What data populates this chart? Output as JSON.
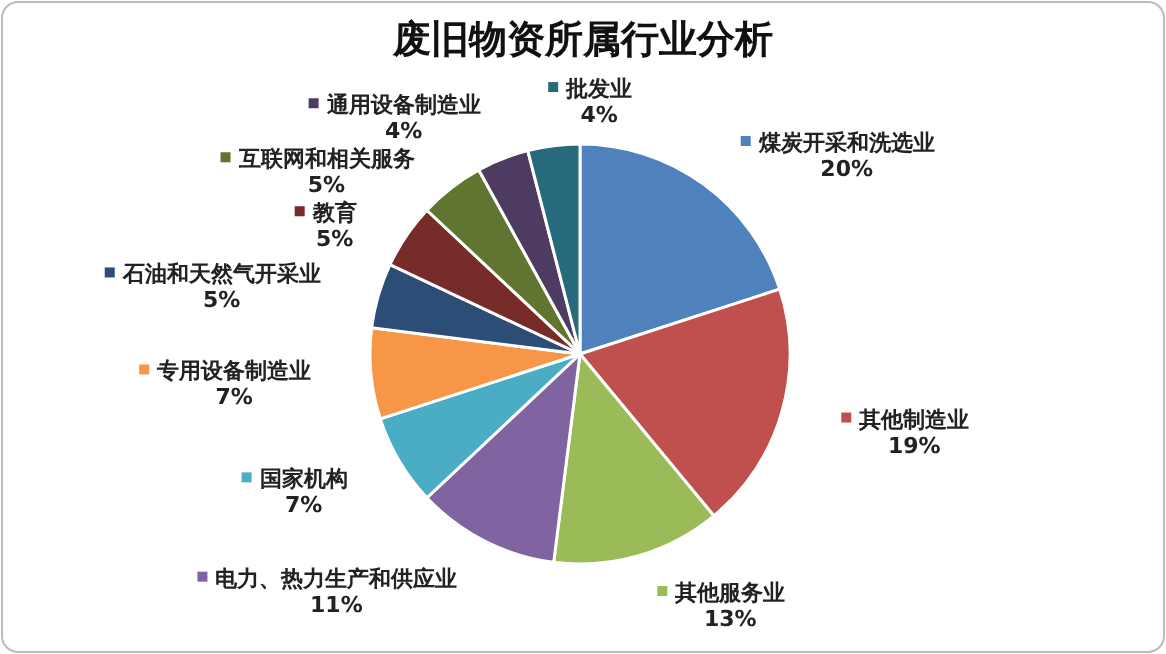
{
  "chart_data": {
    "type": "pie",
    "title": "废旧物资所属行业分析",
    "categories": [
      "煤炭开采和洗选业",
      "其他制造业",
      "其他服务业",
      "电力、热力生产和供应业",
      "国家机构",
      "专用设备制造业",
      "石油和天然气开采业",
      "教育",
      "互联网和相关服务",
      "通用设备制造业",
      "批发业"
    ],
    "values": [
      20,
      19,
      13,
      11,
      7,
      7,
      5,
      5,
      5,
      4,
      4
    ],
    "colors": [
      "#4f81bd",
      "#c0504d",
      "#9bbb59",
      "#8064a2",
      "#4bacc6",
      "#f79646",
      "#2c4d75",
      "#772c2a",
      "#5f7530",
      "#4d3b62",
      "#276a7c"
    ],
    "legend": "left",
    "value_labels": [
      "20%",
      "19%",
      "13%",
      "11%",
      "7%",
      "7%",
      "5%",
      "5%",
      "5%",
      "4%",
      "4%"
    ]
  }
}
